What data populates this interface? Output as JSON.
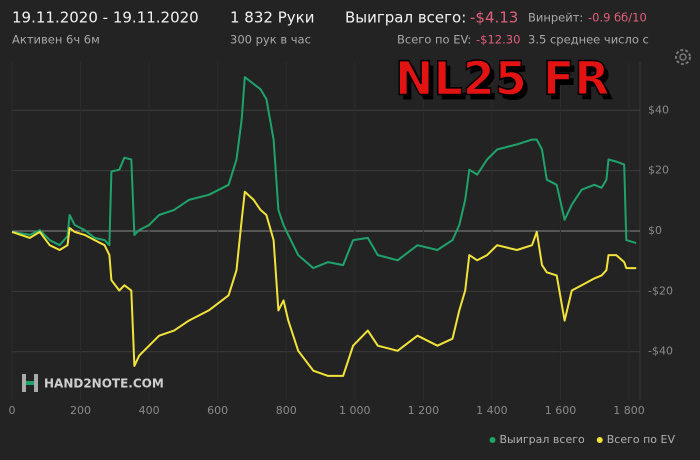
{
  "header": {
    "date_range": "19.11.2020 - 19.11.2020",
    "active": "Активен 6ч 6м",
    "hands": "1 832 Руки",
    "hands_per_hour": "300 рук в час",
    "won_label": "Выиграл всего:",
    "won_value": "-$4.13",
    "ev_label": "Всего по EV:",
    "ev_value": "-$12.30",
    "winrate_label": "Винрейт:",
    "winrate_value": "-0.9 бб/10",
    "avg_label": "3.5 среднее число с"
  },
  "overlay": "NL25 FR",
  "watermark": "HAND2NOTE.COM",
  "chart_data": {
    "type": "line",
    "x": [
      0,
      52,
      81,
      110,
      139,
      162,
      168,
      183,
      212,
      241,
      270,
      284,
      290,
      313,
      328,
      348,
      357,
      371,
      400,
      429,
      473,
      516,
      574,
      632,
      655,
      670,
      679,
      705,
      725,
      742,
      763,
      777,
      792,
      806,
      835,
      879,
      922,
      966,
      995,
      1038,
      1067,
      1125,
      1183,
      1241,
      1285,
      1305,
      1322,
      1334,
      1357,
      1386,
      1415,
      1473,
      1517,
      1531,
      1546,
      1560,
      1589,
      1612,
      1633,
      1662,
      1699,
      1720,
      1734,
      1740,
      1763,
      1786,
      1792,
      1821
    ],
    "series": [
      {
        "name": "Выиграл всего",
        "color": "#1fa36b",
        "values": [
          -0.3,
          -1.3,
          0.3,
          -3,
          -4.7,
          -1.7,
          5.3,
          2,
          0.3,
          -2.3,
          -3,
          -4.7,
          19.7,
          20.3,
          24.3,
          23.7,
          -1.3,
          0.3,
          2,
          5.3,
          7,
          10.3,
          12,
          15.3,
          23.7,
          37,
          51,
          48.7,
          47,
          43.7,
          30.3,
          7,
          2,
          -1.3,
          -8,
          -12.3,
          -10.3,
          -11.3,
          -3,
          -2.3,
          -8,
          -9.7,
          -4.7,
          -6.3,
          -3,
          2,
          10.3,
          20.3,
          18.7,
          23.7,
          27,
          28.7,
          30.3,
          30.3,
          27,
          17,
          15.3,
          3.7,
          8.7,
          13.7,
          15.3,
          14.3,
          17,
          23.7,
          23,
          22,
          -3,
          -4
        ]
      },
      {
        "name": "Всего по EV",
        "color": "#f2e33a",
        "values": [
          -0.3,
          -2.3,
          -0.3,
          -4.7,
          -6.3,
          -4.7,
          1,
          -0.3,
          -1.3,
          -3,
          -4.7,
          -8,
          -16.3,
          -19.7,
          -18,
          -19.7,
          -44.7,
          -41.3,
          -38,
          -34.7,
          -33,
          -29.7,
          -26.3,
          -21.3,
          -13,
          3.7,
          13,
          10.3,
          7,
          5.3,
          -3,
          -26.3,
          -23,
          -29.7,
          -39.7,
          -46.3,
          -48,
          -48,
          -38,
          -33,
          -38,
          -39.7,
          -34.7,
          -38,
          -35.7,
          -26.3,
          -19.7,
          -8,
          -9.7,
          -8,
          -4.7,
          -6.3,
          -4.7,
          -0.3,
          -11.3,
          -13.7,
          -14.7,
          -29.7,
          -19.7,
          -18,
          -15.7,
          -14.7,
          -13,
          -8,
          -8,
          -10.3,
          -12.3,
          -12.3
        ]
      }
    ],
    "xlim": [
      0,
      1832
    ],
    "xticks": [
      0,
      200,
      400,
      600,
      800,
      {
        "value": 1000,
        "label": "1 000"
      },
      {
        "value": 1200,
        "label": "1 200"
      },
      {
        "value": 1400,
        "label": "1 400"
      },
      {
        "value": 1600,
        "label": "1 600"
      },
      {
        "value": 1800,
        "label": "1 800"
      }
    ],
    "ylim": [
      -56,
      56
    ],
    "yticks": [
      {
        "value": -40,
        "label": "-$40"
      },
      {
        "value": -20,
        "label": "-$20"
      },
      {
        "value": 0,
        "label": "$0"
      },
      {
        "value": 20,
        "label": "$20"
      },
      {
        "value": 40,
        "label": "$40"
      }
    ],
    "grid": true,
    "legend": "bottom-right"
  }
}
